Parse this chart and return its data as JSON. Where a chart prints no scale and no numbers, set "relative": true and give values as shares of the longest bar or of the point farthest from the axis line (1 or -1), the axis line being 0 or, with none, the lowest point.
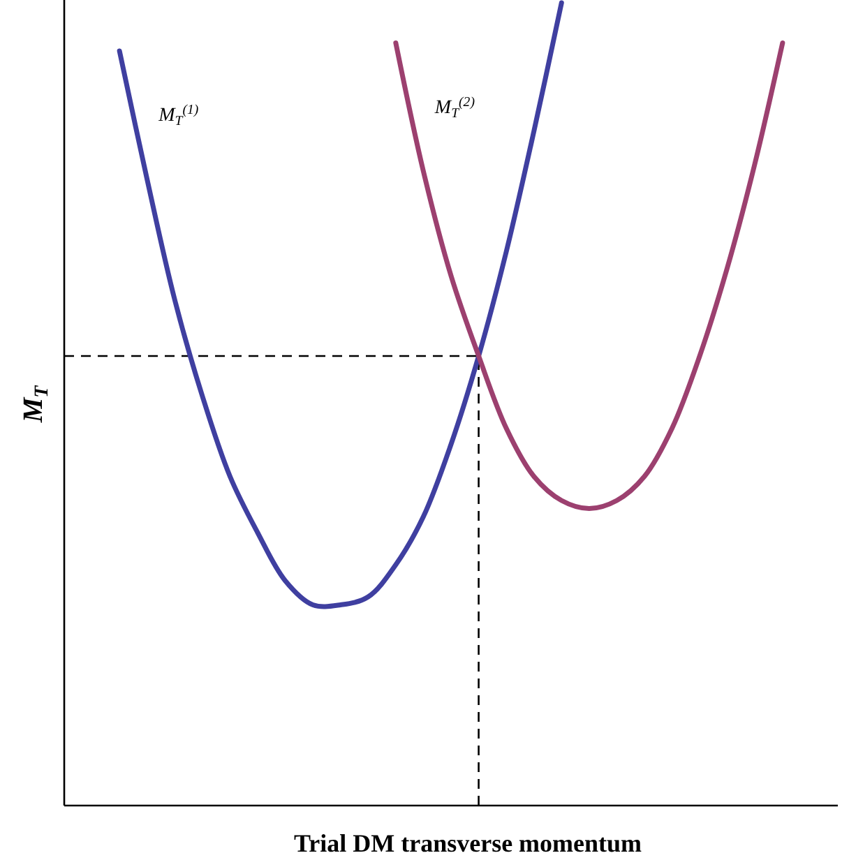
{
  "chart_data": {
    "type": "line",
    "relative": true,
    "xlabel": "Trial DM transverse momentum",
    "ylabel": "M$_{T}$",
    "categories": [
      null,
      null,
      null,
      null,
      null,
      null,
      null,
      null,
      null,
      null,
      null,
      null,
      null,
      null,
      null,
      null,
      null,
      null,
      null,
      null,
      null,
      null,
      null,
      null,
      null,
      null,
      null,
      null,
      null
    ],
    "series": [
      {
        "name": "M$_{T}$$^{(1)}$",
        "color": "#3f3fa0",
        "values": [
          null,
          null,
          0.94,
          0.78,
          0.63,
          0.51,
          0.41,
          0.34,
          0.28,
          0.25,
          0.25,
          0.26,
          0.3,
          0.36,
          0.45,
          0.56,
          0.69,
          0.84,
          1,
          null,
          null,
          null,
          null,
          null,
          null,
          null,
          null,
          null,
          null
        ]
      },
      {
        "name": "M$_{T}$$^{(2)}$",
        "color": "#9c406f",
        "values": [
          null,
          null,
          null,
          null,
          null,
          null,
          null,
          null,
          null,
          null,
          null,
          null,
          0.95,
          0.79,
          0.66,
          0.56,
          0.47,
          0.41,
          0.38,
          0.37,
          0.38,
          0.41,
          0.47,
          0.56,
          0.67,
          0.8,
          0.95,
          null,
          null
        ]
      }
    ],
    "ref_lines": [
      {
        "axis": "y",
        "value": 0.56,
        "line_style": "dashed",
        "color": "#000000"
      }
    ],
    "marker": "none",
    "line_style": "solid"
  }
}
